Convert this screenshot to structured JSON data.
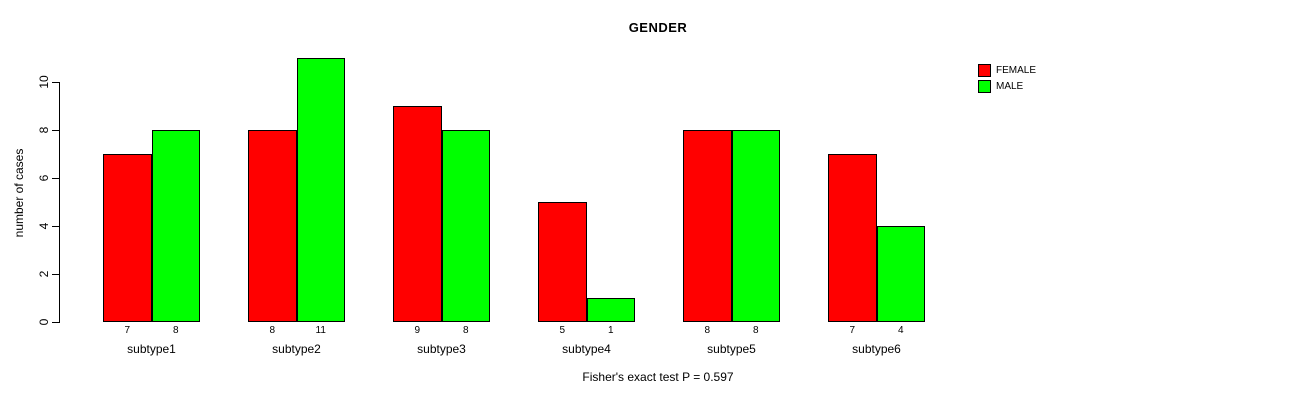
{
  "chart_data": {
    "type": "bar",
    "title": "GENDER",
    "ylabel": "number of cases",
    "xlabel": "",
    "categories": [
      "subtype1",
      "subtype2",
      "subtype3",
      "subtype4",
      "subtype5",
      "subtype6"
    ],
    "series": [
      {
        "name": "FEMALE",
        "color": "#FF0000",
        "values": [
          7,
          8,
          9,
          5,
          8,
          7
        ]
      },
      {
        "name": "MALE",
        "color": "#00FF00",
        "values": [
          8,
          11,
          8,
          1,
          8,
          4
        ]
      }
    ],
    "yticks": [
      0,
      2,
      4,
      6,
      8,
      10
    ],
    "ylim": [
      0,
      11
    ],
    "bar_value_labels": [
      [
        "7",
        "8"
      ],
      [
        "8",
        "11"
      ],
      [
        "9",
        "8"
      ],
      [
        "5",
        "1"
      ],
      [
        "8",
        "8"
      ],
      [
        "7",
        "4"
      ]
    ],
    "bar_border_color": "#000000",
    "background": "#FFFFFF",
    "grid": false,
    "legend_position": "top-right",
    "caption": "Fisher's exact test P = 0.597"
  }
}
